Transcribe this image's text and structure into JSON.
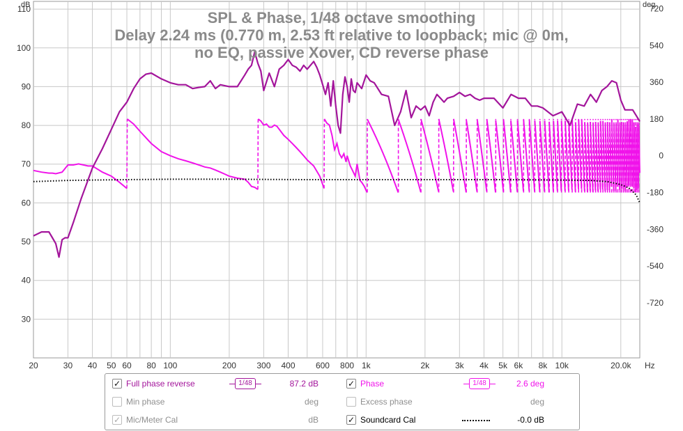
{
  "chart_data": {
    "type": "line",
    "title_lines": [
      "SPL & Phase, 1/48 octave smoothing",
      "Delay 2.24 ms (0.770 m, 2.53 ft relative to loopback; mic @ 0m,",
      "no EQ, passive Xover, CD reverse phase"
    ],
    "x_unit": "Hz",
    "y_left_unit": "dB",
    "y_right_unit": "deg",
    "x_scale": "log",
    "xlim": [
      20,
      25000
    ],
    "ylim_left": [
      20,
      112
    ],
    "ylim_right": [
      -990,
      756
    ],
    "grid": true,
    "x_ticks": [
      {
        "v": 20,
        "l": "20"
      },
      {
        "v": 30,
        "l": "30"
      },
      {
        "v": 40,
        "l": "40"
      },
      {
        "v": 50,
        "l": "50"
      },
      {
        "v": 60,
        "l": "60"
      },
      {
        "v": 80,
        "l": "80"
      },
      {
        "v": 100,
        "l": "100"
      },
      {
        "v": 200,
        "l": "200"
      },
      {
        "v": 300,
        "l": "300"
      },
      {
        "v": 400,
        "l": "400"
      },
      {
        "v": 600,
        "l": "600"
      },
      {
        "v": 800,
        "l": "800"
      },
      {
        "v": 1000,
        "l": "1k"
      },
      {
        "v": 2000,
        "l": "2k"
      },
      {
        "v": 3000,
        "l": "3k"
      },
      {
        "v": 4000,
        "l": "4k"
      },
      {
        "v": 5000,
        "l": "5k"
      },
      {
        "v": 6000,
        "l": "6k"
      },
      {
        "v": 8000,
        "l": "8k"
      },
      {
        "v": 10000,
        "l": "10k"
      },
      {
        "v": 20000,
        "l": "20.0k"
      }
    ],
    "y_left_ticks": [
      {
        "v": 30,
        "l": "30"
      },
      {
        "v": 40,
        "l": "40"
      },
      {
        "v": 50,
        "l": "50"
      },
      {
        "v": 60,
        "l": "60"
      },
      {
        "v": 70,
        "l": "70"
      },
      {
        "v": 80,
        "l": "80"
      },
      {
        "v": 90,
        "l": "90"
      },
      {
        "v": 100,
        "l": "100"
      },
      {
        "v": 110,
        "l": "110"
      }
    ],
    "y_right_ticks": [
      {
        "v": -720,
        "l": "-720"
      },
      {
        "v": -540,
        "l": "-540"
      },
      {
        "v": -360,
        "l": "-360"
      },
      {
        "v": -180,
        "l": "-180"
      },
      {
        "v": 0,
        "l": "0"
      },
      {
        "v": 180,
        "l": "180"
      },
      {
        "v": 360,
        "l": "360"
      },
      {
        "v": 540,
        "l": "540"
      },
      {
        "v": 720,
        "l": "720"
      }
    ],
    "series": [
      {
        "name": "Full phase reverse",
        "axis": "left",
        "color": "#a3159b",
        "x": [
          20,
          22,
          24,
          25,
          26,
          27,
          28,
          29,
          30,
          32,
          35,
          40,
          45,
          50,
          55,
          60,
          65,
          70,
          75,
          80,
          90,
          100,
          110,
          120,
          130,
          140,
          150,
          160,
          170,
          180,
          200,
          220,
          240,
          250,
          260,
          270,
          280,
          290,
          300,
          320,
          340,
          360,
          380,
          400,
          420,
          440,
          460,
          480,
          500,
          540,
          560,
          580,
          600,
          620,
          640,
          660,
          680,
          700,
          720,
          740,
          760,
          780,
          800,
          820,
          840,
          860,
          880,
          900,
          950,
          1000,
          1050,
          1100,
          1200,
          1300,
          1400,
          1500,
          1600,
          1700,
          1800,
          1900,
          2000,
          2100,
          2200,
          2300,
          2400,
          2500,
          2600,
          2800,
          3000,
          3200,
          3400,
          3600,
          3800,
          4000,
          4500,
          5000,
          5500,
          6000,
          6500,
          7000,
          7500,
          8000,
          9000,
          10000,
          11000,
          12000,
          13000,
          14000,
          15000,
          16000,
          17000,
          18000,
          19000,
          20000,
          21000,
          22000,
          23000,
          24000,
          25000
        ],
        "y": [
          51.5,
          52.5,
          52.5,
          51,
          49.5,
          46,
          50.5,
          51,
          51,
          55,
          61,
          69,
          74,
          79,
          83.5,
          86,
          89.5,
          92,
          93.2,
          93.5,
          92,
          91,
          90.5,
          90.5,
          89.5,
          89.8,
          90,
          91.5,
          89.5,
          90.5,
          90,
          90,
          93,
          94.5,
          95.5,
          99,
          96,
          94,
          89,
          93.5,
          90,
          94.5,
          95.5,
          97,
          95.5,
          95,
          94,
          95.5,
          94.5,
          96.5,
          95,
          93,
          90.5,
          88,
          91,
          85,
          91.5,
          85,
          80,
          78,
          88,
          92.5,
          90,
          86,
          92,
          89,
          88.5,
          91,
          89.5,
          93,
          91.5,
          91,
          88,
          87.5,
          80,
          83.5,
          89,
          82,
          85,
          84,
          85,
          82.5,
          86,
          88,
          87,
          86,
          87,
          87.5,
          88.5,
          87.5,
          88,
          87,
          86.5,
          87,
          87,
          84.5,
          88,
          87,
          87,
          85,
          85,
          84.5,
          82.5,
          83.5,
          80,
          85.5,
          85,
          88,
          86,
          89,
          90,
          91.5,
          91,
          86.5,
          84,
          84,
          84,
          82.5,
          81
        ]
      },
      {
        "name": "Phase",
        "axis": "right",
        "color": "#f013ea",
        "x": [
          20,
          22,
          24,
          25,
          26,
          28,
          30,
          32,
          34,
          36,
          38,
          40,
          45,
          50,
          55,
          60,
          60.3,
          65,
          70,
          80,
          90,
          100,
          110,
          120,
          130,
          140,
          150,
          160,
          170,
          180,
          190,
          200,
          220,
          240,
          250,
          260,
          270,
          280,
          281,
          290,
          300,
          310,
          320,
          330,
          340,
          350,
          360,
          380,
          400,
          420,
          440,
          460,
          480,
          500,
          540,
          580,
          610,
          612,
          630,
          650,
          670,
          690,
          710,
          730,
          750,
          770,
          790,
          800,
          830,
          850,
          880,
          900,
          930,
          950,
          980,
          1000
        ],
        "y": [
          -72,
          -80,
          -85,
          -85,
          -88,
          -80,
          -45,
          -45,
          -40,
          -45,
          -50,
          -50,
          -80,
          -100,
          -130,
          -160,
          180,
          155,
          120,
          60,
          20,
          0,
          -15,
          -25,
          -35,
          -45,
          -55,
          -60,
          -70,
          -80,
          -90,
          -100,
          -110,
          -115,
          -130,
          -150,
          -155,
          -165,
          180,
          170,
          150,
          155,
          140,
          140,
          150,
          145,
          130,
          100,
          80,
          60,
          40,
          20,
          0,
          -20,
          -50,
          -100,
          -160,
          180,
          160,
          150,
          100,
          30,
          60,
          10,
          -10,
          10,
          -30,
          0,
          -50,
          -70,
          -100,
          -40,
          -120,
          -130,
          -150,
          -170
        ]
      },
      {
        "name": "Soundcard Cal",
        "axis": "left",
        "color": "#000000",
        "x": [
          20,
          30,
          40,
          60,
          100,
          200,
          500,
          1000,
          2000,
          5000,
          10000,
          14000,
          17000,
          19000,
          20000,
          21000,
          22000,
          23000,
          24000,
          25000
        ],
        "y": [
          65.5,
          65.8,
          65.9,
          66,
          66.1,
          66.1,
          66,
          66,
          66,
          66,
          65.9,
          65.8,
          65.5,
          65,
          64.7,
          64.3,
          63.8,
          63,
          62,
          60
        ]
      }
    ],
    "phase_wrap_above_1k": {
      "start_hz": 1000,
      "end_hz": 25000,
      "wrap_hi_deg": 180,
      "wrap_lo_deg": -180,
      "delay_ms": 2.24
    },
    "legend": [
      {
        "label": "Full phase reverse",
        "checked": true,
        "enabled": true,
        "color": "#a3159b",
        "smoothing": "1/48",
        "value": "87.2 dB"
      },
      {
        "label": "Phase",
        "checked": true,
        "enabled": true,
        "color": "#f013ea",
        "smoothing": "1/48",
        "value": "2.6 deg"
      },
      {
        "label": "Min phase",
        "checked": false,
        "enabled": false,
        "color": "#9a9a9a",
        "value": "deg"
      },
      {
        "label": "Excess phase",
        "checked": false,
        "enabled": false,
        "color": "#9a9a9a",
        "value": "deg"
      },
      {
        "label": "Mic/Meter Cal",
        "checked": true,
        "enabled": false,
        "color": "#9a9a9a",
        "value": "dB"
      },
      {
        "label": "Soundcard Cal",
        "checked": true,
        "enabled": true,
        "color": "#000000",
        "value": "-0.0 dB"
      }
    ]
  }
}
